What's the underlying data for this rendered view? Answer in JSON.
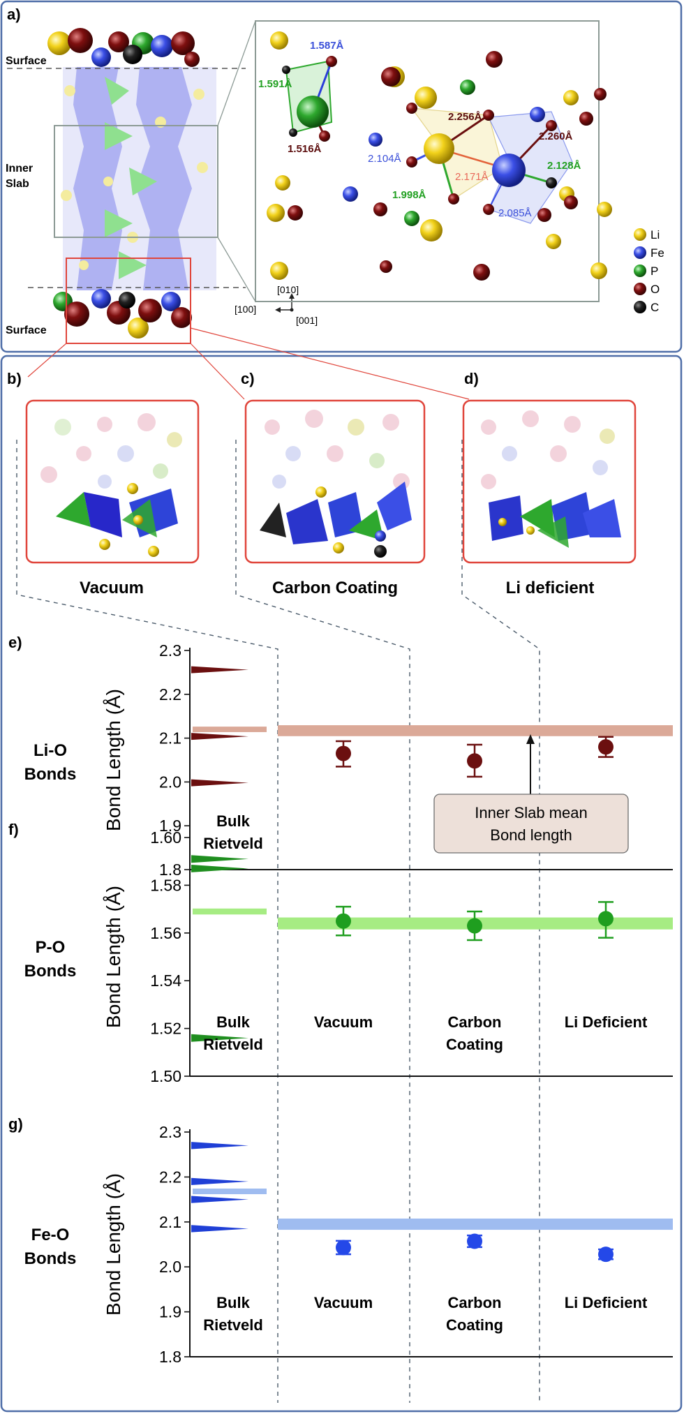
{
  "panel_labels": {
    "a": "a)",
    "b": "b)",
    "c": "c)",
    "d": "d)",
    "e": "e)",
    "f": "f)",
    "g": "g)"
  },
  "slab": {
    "surface_top": "Surface",
    "inner_line1": "Inner",
    "inner_line2": "Slab",
    "surface_bottom": "Surface"
  },
  "axes_triad": {
    "up": "[010]",
    "left": "[100]",
    "out": "[001]"
  },
  "bond_annotations": [
    "1.587Å",
    "1.591Å",
    "1.516Å",
    "2.256Å",
    "2.260Å",
    "2.104Å",
    "2.171Å",
    "2.128Å",
    "1.998Å",
    "2.085Å"
  ],
  "legend": [
    {
      "label": "Li",
      "color": "#f2d21b"
    },
    {
      "label": "Fe",
      "color": "#3b4fe6"
    },
    {
      "label": "P",
      "color": "#2ea82e"
    },
    {
      "label": "O",
      "color": "#c81e1e"
    },
    {
      "label": "C",
      "color": "#111111"
    }
  ],
  "scenarios": [
    "Vacuum",
    "Carbon Coating",
    "Li deficient"
  ],
  "inner_slab_note_line1": "Inner Slab mean",
  "inner_slab_note_line2": "Bond length",
  "chart_data": [
    {
      "type": "scatter",
      "panel": "e)",
      "row_label": [
        "Li-O",
        "Bonds"
      ],
      "ylabel": "Bond Length (Å)",
      "ylim": [
        1.8,
        2.3
      ],
      "yticks": [
        "1.8",
        "1.9",
        "2.0",
        "2.1",
        "2.2",
        "2.3"
      ],
      "categories": [
        "",
        "",
        "",
        ""
      ],
      "bulk_label": [
        "Bulk",
        "Rietveld"
      ],
      "bulk_bonds": [
        2.256,
        2.104,
        1.998
      ],
      "bulk_mean": 2.12,
      "inner_slab_mean": 2.117,
      "points": [
        2.065,
        2.048,
        2.08
      ],
      "err": [
        [
          2.035,
          2.093
        ],
        [
          2.012,
          2.085
        ],
        [
          2.057,
          2.103
        ]
      ],
      "colors": {
        "marker": "#6b0f0f",
        "peak": "#6b0f0f",
        "band": "#dba998"
      }
    },
    {
      "type": "scatter",
      "panel": "f)",
      "row_label": [
        "P-O",
        "Bonds"
      ],
      "ylabel": "Bond Length (Å)",
      "ylim": [
        1.5,
        1.6
      ],
      "yticks": [
        "1.50",
        "1.52",
        "1.54",
        "1.56",
        "1.58",
        "1.60"
      ],
      "categories": [
        "Vacuum",
        "Carbon",
        "Li Deficient"
      ],
      "categories_line2": [
        "",
        "Coating",
        ""
      ],
      "bulk_label": [
        "Bulk",
        "Rietveld"
      ],
      "bulk_bonds": [
        1.591,
        1.587,
        1.516
      ],
      "bulk_mean": 1.569,
      "inner_slab_mean": 1.564,
      "points": [
        1.565,
        1.563,
        1.566
      ],
      "err": [
        [
          1.559,
          1.571
        ],
        [
          1.557,
          1.569
        ],
        [
          1.558,
          1.573
        ]
      ],
      "colors": {
        "marker": "#1f9e1f",
        "peak": "#1f8e1f",
        "band": "#a6ec83"
      }
    },
    {
      "type": "scatter",
      "panel": "g)",
      "row_label": [
        "Fe-O",
        "Bonds"
      ],
      "ylabel": "Bond Length (Å)",
      "ylim": [
        1.8,
        2.3
      ],
      "yticks": [
        "1.8",
        "1.9",
        "2.0",
        "2.1",
        "2.2",
        "2.3"
      ],
      "categories": [
        "Vacuum",
        "Carbon",
        "Li Deficient"
      ],
      "categories_line2": [
        "",
        "Coating",
        ""
      ],
      "bulk_label": [
        "Bulk",
        "Rietveld"
      ],
      "bulk_bonds": [
        2.27,
        2.19,
        2.15,
        2.085
      ],
      "bulk_mean": 2.168,
      "inner_slab_mean": 2.095,
      "points": [
        2.043,
        2.057,
        2.028
      ],
      "err": [
        [
          2.028,
          2.058
        ],
        [
          2.044,
          2.07
        ],
        [
          2.017,
          2.039
        ]
      ],
      "colors": {
        "marker": "#2448e8",
        "peak": "#1f3fd6",
        "band": "#9fbcf0"
      }
    }
  ]
}
